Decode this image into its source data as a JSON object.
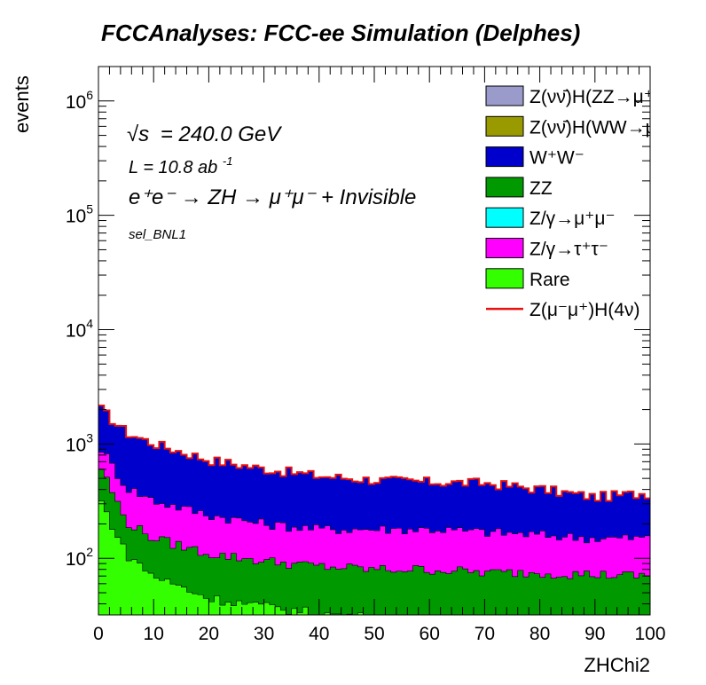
{
  "header": {
    "title": "FCCAnalyses: FCC-ee Simulation (Delphes)"
  },
  "annotations": {
    "sqrt_s_symbol": "√s",
    "energy": "= 240.0 GeV",
    "lumi_prefix": "L = 10.8 ab",
    "lumi_exp": "-1",
    "process": "e⁺e⁻ → ZH → μ⁺μ⁻ + Invisible",
    "selection": "sel_BNL1"
  },
  "colors": {
    "frame": "#000000",
    "signal_line": "#e8110f"
  },
  "chart_data": {
    "type": "area",
    "title": "FCCAnalyses: FCC-ee Simulation (Delphes)",
    "xlabel": "ZHChi2",
    "ylabel": "events",
    "xlim": [
      0,
      100
    ],
    "ylim": [
      32,
      2000000
    ],
    "log_y": true,
    "grid": false,
    "legend_position": "top-right",
    "x_tick_labels": [
      "0",
      "10",
      "20",
      "30",
      "40",
      "50",
      "60",
      "70",
      "80",
      "90",
      "100"
    ],
    "y_tick_labels": [
      {
        "value": 100,
        "base": "10",
        "exp": "2"
      },
      {
        "value": 1000,
        "base": "10",
        "exp": "3"
      },
      {
        "value": 10000,
        "base": "10",
        "exp": "4"
      },
      {
        "value": 100000,
        "base": "10",
        "exp": "5"
      },
      {
        "value": 1000000,
        "base": "10",
        "exp": "6"
      }
    ],
    "x_anchor": [
      0,
      5,
      10,
      20,
      30,
      40,
      50,
      60,
      70,
      80,
      90,
      100
    ],
    "legend": [
      {
        "label": "Z(νν̄)H(ZZ→μ⁺μ⁻ν⁺",
        "color": "#9a9acb",
        "kind": "fill"
      },
      {
        "label": "Z(νν̄)H(WW→μ⁺νμ",
        "color": "#999900",
        "kind": "fill"
      },
      {
        "label": "W⁺W⁻",
        "color": "#0000cc",
        "kind": "fill"
      },
      {
        "label": "ZZ",
        "color": "#009900",
        "kind": "fill"
      },
      {
        "label": "Z/γ→μ⁺μ⁻",
        "color": "#00ffff",
        "kind": "fill"
      },
      {
        "label": "Z/γ→τ⁺τ⁻",
        "color": "#ff00ff",
        "kind": "fill"
      },
      {
        "label": "Rare",
        "color": "#33ff00",
        "kind": "fill"
      },
      {
        "label": "Z(μ⁻μ⁺)H(4ν)",
        "color": "#e8110f",
        "kind": "line"
      }
    ],
    "series": [
      {
        "name": "W⁺W⁻",
        "color": "#0000cc",
        "cumulative_anchor": [
          2100,
          1250,
          1000,
          720,
          600,
          520,
          480,
          460,
          450,
          400,
          340,
          370
        ]
      },
      {
        "name": "Z/γ→τ⁺τ⁻",
        "color": "#ff00ff",
        "cumulative_anchor": [
          1000,
          420,
          320,
          240,
          200,
          180,
          180,
          180,
          170,
          160,
          150,
          150
        ]
      },
      {
        "name": "ZZ",
        "color": "#009900",
        "cumulative_anchor": [
          700,
          210,
          150,
          110,
          95,
          85,
          80,
          80,
          75,
          75,
          72,
          70
        ]
      },
      {
        "name": "Rare",
        "color": "#33ff00",
        "cumulative_anchor": [
          350,
          110,
          70,
          45,
          38,
          33,
          30,
          28,
          26,
          25,
          24,
          23
        ]
      }
    ]
  }
}
